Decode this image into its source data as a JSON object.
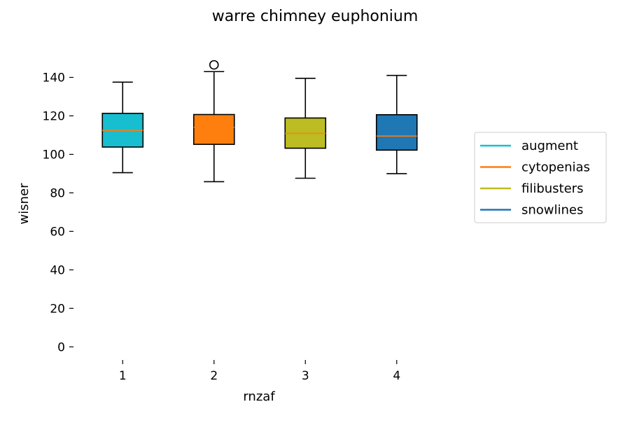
{
  "chart_data": {
    "type": "box",
    "title": "warre chimney euphonium",
    "xlabel": "rnzaf",
    "ylabel": "wisner",
    "ylim": [
      -5,
      150
    ],
    "yticks": [
      0,
      20,
      40,
      60,
      80,
      100,
      120,
      140
    ],
    "categories": [
      "1",
      "2",
      "3",
      "4"
    ],
    "legend_position": "right",
    "median_color": "#ff7f0e",
    "series": [
      {
        "name": "augment",
        "color": "#17becf",
        "whisker_low": 90.5,
        "q1": 103.8,
        "median": 112.5,
        "q3": 121.3,
        "whisker_high": 137.5,
        "outliers": []
      },
      {
        "name": "cytopenias",
        "color": "#ff7f0e",
        "whisker_low": 85.8,
        "q1": 105.2,
        "median": 114.0,
        "q3": 120.7,
        "whisker_high": 143.0,
        "outliers": [
          146.5
        ]
      },
      {
        "name": "filibusters",
        "color": "#bcbd22",
        "whisker_low": 87.6,
        "q1": 103.2,
        "median": 110.9,
        "q3": 118.9,
        "whisker_high": 139.5,
        "outliers": []
      },
      {
        "name": "snowlines",
        "color": "#1f77b4",
        "whisker_low": 90.0,
        "q1": 102.2,
        "median": 109.5,
        "q3": 120.6,
        "whisker_high": 141.0,
        "outliers": []
      }
    ]
  }
}
